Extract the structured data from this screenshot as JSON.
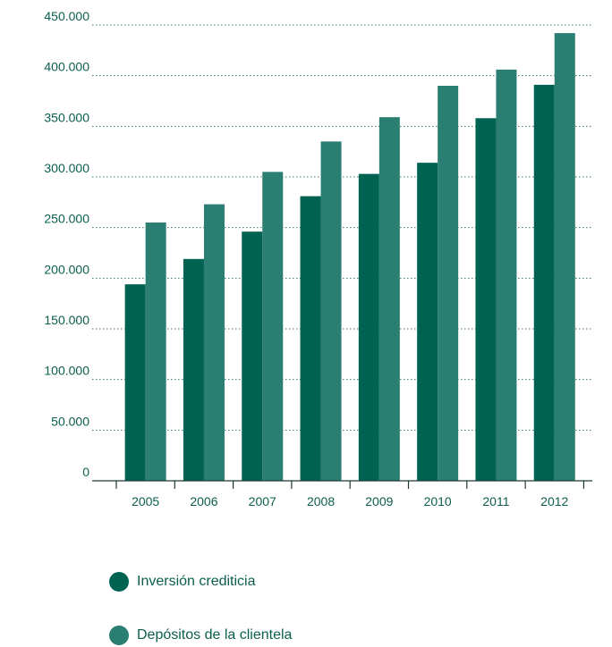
{
  "chart_data": {
    "type": "bar",
    "categories": [
      "2005",
      "2006",
      "2007",
      "2008",
      "2009",
      "2010",
      "2011",
      "2012"
    ],
    "series": [
      {
        "name": "Inversión crediticia",
        "color": "#006352",
        "values": [
          194000,
          219000,
          246000,
          281000,
          303000,
          314000,
          358000,
          391000
        ]
      },
      {
        "name": "Depósitos de la clientela",
        "color": "#2a7f72",
        "values": [
          255000,
          273000,
          305000,
          335000,
          359000,
          390000,
          406000,
          442000
        ]
      }
    ],
    "ylim": [
      0,
      450000
    ],
    "yticks": [
      0,
      50000,
      100000,
      150000,
      200000,
      250000,
      300000,
      350000,
      400000,
      450000
    ],
    "ytick_labels": [
      "0",
      "50.000",
      "100.000",
      "150.000",
      "200.000",
      "250.000",
      "300.000",
      "350.000",
      "400.000",
      "450.000"
    ],
    "grid": true,
    "legend_position": "bottom-left"
  }
}
